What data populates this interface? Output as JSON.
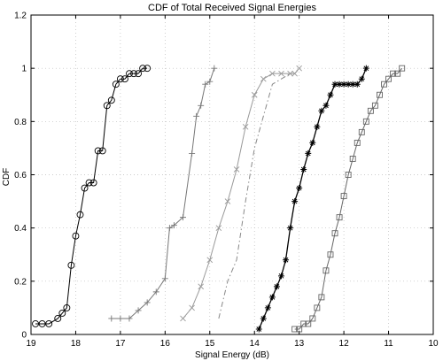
{
  "chart_data": {
    "type": "line",
    "title": "CDF of Total Received Signal Energies",
    "xlabel": "Signal Energy (dB)",
    "ylabel": "CDF",
    "xlim": [
      19,
      10
    ],
    "ylim": [
      0,
      1.2
    ],
    "x_reversed": true,
    "grid": true,
    "xticks": [
      19,
      18,
      17,
      16,
      15,
      14,
      13,
      12,
      11,
      10
    ],
    "yticks": [
      0,
      0.2,
      0.4,
      0.6,
      0.8,
      1,
      1.2
    ],
    "xtick_labels": [
      "19",
      "18",
      "17",
      "16",
      "15",
      "14",
      "13",
      "12",
      "11",
      "10"
    ],
    "ytick_labels": [
      "0",
      "0.2",
      "0.4",
      "0.6",
      "0.8",
      "1",
      "1.2"
    ],
    "series": [
      {
        "marker": "circle",
        "color": "#000000",
        "dash": "",
        "x": [
          18.9,
          18.75,
          18.6,
          18.4,
          18.3,
          18.2,
          18.1,
          18.0,
          17.9,
          17.8,
          17.7,
          17.6,
          17.5,
          17.4,
          17.3,
          17.2,
          17.1,
          17.0,
          16.9,
          16.8,
          16.7,
          16.6,
          16.5,
          16.4
        ],
        "y": [
          0.04,
          0.04,
          0.04,
          0.06,
          0.08,
          0.1,
          0.26,
          0.37,
          0.45,
          0.55,
          0.57,
          0.57,
          0.69,
          0.69,
          0.86,
          0.88,
          0.94,
          0.96,
          0.96,
          0.98,
          0.98,
          0.98,
          1.0,
          1.0
        ]
      },
      {
        "marker": "plus",
        "color": "#777777",
        "dash": "",
        "x": [
          17.2,
          17.0,
          16.8,
          16.6,
          16.4,
          16.2,
          16.0,
          15.9,
          15.8,
          15.6,
          15.4,
          15.3,
          15.2,
          15.1,
          15.0,
          14.9
        ],
        "y": [
          0.06,
          0.06,
          0.06,
          0.09,
          0.12,
          0.16,
          0.21,
          0.4,
          0.41,
          0.44,
          0.68,
          0.82,
          0.86,
          0.94,
          0.95,
          1.0
        ]
      },
      {
        "marker": "x",
        "color": "#999999",
        "dash": "",
        "x": [
          15.6,
          15.4,
          15.2,
          15.0,
          14.8,
          14.6,
          14.4,
          14.2,
          14.0,
          13.8,
          13.6,
          13.4,
          13.2,
          13.1,
          13.0
        ],
        "y": [
          0.06,
          0.1,
          0.18,
          0.28,
          0.4,
          0.5,
          0.62,
          0.78,
          0.9,
          0.96,
          0.98,
          0.98,
          0.98,
          0.98,
          1.0
        ]
      },
      {
        "marker": "none",
        "color": "#888888",
        "dash": "6,3,1.5,3",
        "x": [
          14.8,
          14.6,
          14.4,
          14.2,
          14.0,
          13.8,
          13.6,
          13.4,
          13.2
        ],
        "y": [
          0.06,
          0.2,
          0.28,
          0.5,
          0.7,
          0.82,
          0.94,
          0.96,
          0.98
        ]
      },
      {
        "marker": "star",
        "color": "#000000",
        "dash": "",
        "x": [
          13.9,
          13.8,
          13.7,
          13.6,
          13.5,
          13.4,
          13.3,
          13.2,
          13.1,
          13.0,
          12.9,
          12.8,
          12.7,
          12.6,
          12.5,
          12.4,
          12.3,
          12.2,
          12.1,
          12.0,
          11.9,
          11.8,
          11.7,
          11.6,
          11.5
        ],
        "y": [
          0.02,
          0.06,
          0.1,
          0.14,
          0.18,
          0.22,
          0.28,
          0.4,
          0.5,
          0.55,
          0.62,
          0.68,
          0.72,
          0.78,
          0.84,
          0.86,
          0.9,
          0.94,
          0.94,
          0.94,
          0.94,
          0.94,
          0.94,
          0.96,
          1.0
        ]
      },
      {
        "marker": "square",
        "color": "#666666",
        "dash": "",
        "x": [
          13.1,
          13.0,
          12.9,
          12.8,
          12.7,
          12.6,
          12.5,
          12.4,
          12.3,
          12.2,
          12.1,
          12.0,
          11.9,
          11.8,
          11.7,
          11.6,
          11.5,
          11.4,
          11.3,
          11.2,
          11.1,
          11.0,
          10.9,
          10.8,
          10.7
        ],
        "y": [
          0.02,
          0.02,
          0.04,
          0.04,
          0.06,
          0.1,
          0.14,
          0.24,
          0.3,
          0.38,
          0.44,
          0.52,
          0.6,
          0.66,
          0.72,
          0.76,
          0.8,
          0.84,
          0.86,
          0.9,
          0.94,
          0.96,
          0.98,
          0.98,
          1.0
        ]
      }
    ]
  }
}
